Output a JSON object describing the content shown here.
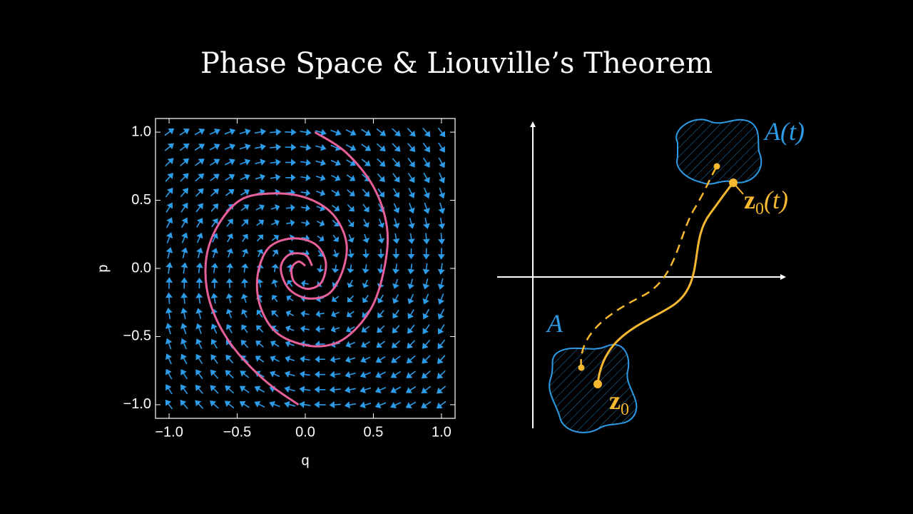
{
  "title": "Phase Space & Liouville’s Theorem",
  "chart_data": {
    "type": "phase-portrait",
    "x_label": "q",
    "y_label": "p",
    "xlim": [
      -1.1,
      1.1
    ],
    "ylim": [
      -1.1,
      1.1
    ],
    "xticks": [
      {
        "value": -1,
        "label": "−1.0"
      },
      {
        "value": -0.5,
        "label": "−0.5"
      },
      {
        "value": 0,
        "label": "0.0"
      },
      0.5,
      {
        "value": 1,
        "label": "1.0"
      }
    ],
    "yticks": [
      {
        "value": -1,
        "label": "−1.0"
      },
      {
        "value": -0.5,
        "label": "−0.5"
      },
      {
        "value": 0,
        "label": "0.0"
      },
      0.5,
      {
        "value": 1,
        "label": "1.0"
      }
    ],
    "field_color": "#2d9ce8",
    "series": [
      {
        "color": "#e8609a",
        "x": [
          0.07,
          0.3,
          0.5,
          0.6,
          0.58,
          0.48,
          0.28,
          0.05,
          -0.2,
          -0.33,
          -0.35,
          -0.27,
          -0.1,
          0.07,
          0.15,
          0.12,
          0.02,
          -0.08,
          -0.1,
          -0.05,
          0
        ],
        "y": [
          1.0,
          0.85,
          0.6,
          0.3,
          0,
          -0.3,
          -0.52,
          -0.57,
          -0.48,
          -0.28,
          -0.05,
          0.15,
          0.22,
          0.18,
          0.05,
          -0.1,
          -0.15,
          -0.1,
          0,
          0.05,
          0.02
        ]
      },
      {
        "color": "#e8609a",
        "x": [
          -0.05,
          -0.3,
          -0.55,
          -0.7,
          -0.73,
          -0.65,
          -0.48,
          -0.25,
          0,
          0.2,
          0.3,
          0.28,
          0.18,
          0.02,
          -0.12,
          -0.18,
          -0.12,
          0,
          0.05
        ],
        "y": [
          -1.0,
          -0.82,
          -0.55,
          -0.25,
          0.05,
          0.3,
          0.5,
          0.55,
          0.52,
          0.4,
          0.2,
          0,
          -0.18,
          -0.22,
          -0.15,
          0,
          0.1,
          0.1,
          0.02
        ]
      }
    ]
  },
  "diagram": {
    "region_end": "A(t)",
    "point_end": {
      "base": "z",
      "sub": "0",
      "arg": "(t)"
    },
    "region_start": "A",
    "point_start": {
      "base": "z",
      "sub": "0"
    }
  }
}
